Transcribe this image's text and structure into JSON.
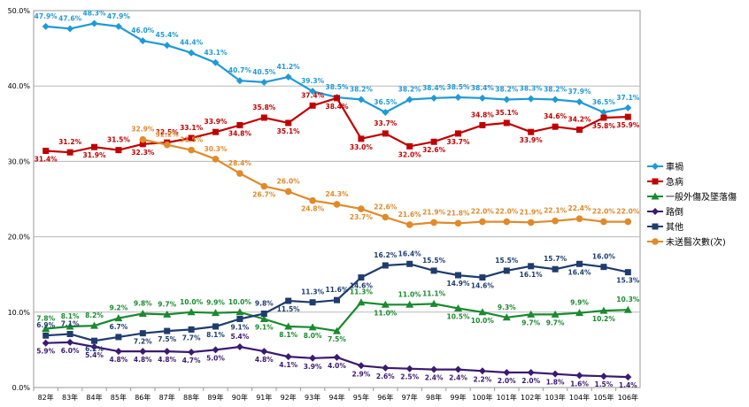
{
  "chart_data": {
    "type": "line",
    "categories": [
      "82年",
      "83年",
      "84年",
      "85年",
      "86年",
      "87年",
      "88年",
      "89年",
      "90年",
      "91年",
      "92年",
      "93年",
      "94年",
      "95年",
      "96年",
      "97年",
      "98年",
      "99年",
      "100年",
      "101年",
      "102年",
      "103年",
      "104年",
      "105年",
      "106年"
    ],
    "ylim": [
      0,
      50
    ],
    "yticks": [
      "0.0%",
      "10.0%",
      "20.0%",
      "30.0%",
      "40.0%",
      "50.0%"
    ],
    "grid": true,
    "legend_position": "right",
    "series": [
      {
        "name": "車禍",
        "color": "#1f9ad6",
        "marker": "diamond",
        "values": [
          47.9,
          47.6,
          48.3,
          47.9,
          46.0,
          45.4,
          44.4,
          43.1,
          40.7,
          40.5,
          41.2,
          39.3,
          38.5,
          38.2,
          36.5,
          38.2,
          38.4,
          38.5,
          38.4,
          38.2,
          38.3,
          38.2,
          37.9,
          36.5,
          37.1
        ],
        "labels": [
          "47.9%",
          "47.6%",
          "48.3%",
          "47.9%",
          "46.0%",
          "45.4%",
          "44.4%",
          "43.1%",
          "40.7%",
          "40.5%",
          "41.2%",
          "39.3%",
          "38.5%",
          "38.2%",
          "36.5%",
          "38.2%",
          "38.4%",
          "38.5%",
          "38.4%",
          "38.2%",
          "38.3%",
          "38.2%",
          "37.9%",
          "36.5%",
          "37.1%"
        ]
      },
      {
        "name": "急病",
        "color": "#c00000",
        "marker": "square",
        "values": [
          31.4,
          31.2,
          31.9,
          31.5,
          32.3,
          32.5,
          33.1,
          33.9,
          34.8,
          35.8,
          35.1,
          37.4,
          38.4,
          33.0,
          33.7,
          32.0,
          32.6,
          33.7,
          34.8,
          35.1,
          33.9,
          34.6,
          34.2,
          35.8,
          35.9
        ],
        "labels": [
          "31.4%",
          "31.2%",
          "31.9%",
          "31.5%",
          "32.3%",
          "32.5%",
          "33.1%",
          "33.9%",
          "34.8%",
          "35.8%",
          "35.1%",
          "37.4%",
          "38.4%",
          "33.0%",
          "33.7%",
          "32.0%",
          "32.6%",
          "33.7%",
          "34.8%",
          "35.1%",
          "33.9%",
          "34.6%",
          "34.2%",
          "35.8%",
          "35.9%"
        ]
      },
      {
        "name": "一般外傷及墜落傷",
        "color": "#1a8a2e",
        "marker": "triangle",
        "values": [
          7.8,
          8.1,
          8.2,
          9.2,
          9.8,
          9.7,
          10.0,
          9.9,
          10.0,
          9.1,
          8.1,
          8.0,
          7.5,
          11.3,
          11.0,
          11.0,
          11.1,
          10.5,
          10.0,
          9.3,
          9.7,
          9.7,
          9.9,
          10.2,
          10.3
        ],
        "labels": [
          "7.8%",
          "8.1%",
          "8.2%",
          "9.2%",
          "9.8%",
          "9.7%",
          "10.0%",
          "9.9%",
          "10.0%",
          "9.1%",
          "8.1%",
          "8.0%",
          "7.5%",
          "11.3%",
          "11.0%",
          "11.0%",
          "11.1%",
          "10.5%",
          "10.0%",
          "9.3%",
          "9.7%",
          "9.7%",
          "9.9%",
          "10.2%",
          "10.3%"
        ]
      },
      {
        "name": "路倒",
        "color": "#3b1a70",
        "marker": "diamond",
        "values": [
          5.9,
          6.0,
          5.4,
          4.8,
          4.8,
          4.8,
          4.7,
          5.0,
          5.4,
          4.8,
          4.1,
          3.9,
          4.0,
          2.9,
          2.6,
          2.5,
          2.4,
          2.4,
          2.2,
          2.0,
          2.0,
          1.8,
          1.6,
          1.5,
          1.4
        ],
        "labels": [
          "5.9%",
          "6.0%",
          "5.4%",
          "4.8%",
          "4.8%",
          "4.8%",
          "4.7%",
          "5.0%",
          "5.4%",
          "4.8%",
          "4.1%",
          "3.9%",
          "4.0%",
          "2.9%",
          "2.6%",
          "2.5%",
          "2.4%",
          "2.4%",
          "2.2%",
          "2.0%",
          "2.0%",
          "1.8%",
          "1.6%",
          "1.5%",
          "1.4%"
        ]
      },
      {
        "name": "其他",
        "color": "#1f3c6e",
        "marker": "square",
        "values": [
          6.9,
          7.1,
          6.2,
          6.7,
          7.2,
          7.5,
          7.7,
          8.1,
          9.1,
          9.8,
          11.5,
          11.3,
          11.6,
          14.6,
          16.2,
          16.4,
          15.5,
          14.9,
          14.6,
          15.5,
          16.1,
          15.7,
          16.4,
          16.0,
          15.3
        ],
        "labels": [
          "6.9%",
          "7.1%",
          "6.2%",
          "6.7%",
          "7.2%",
          "7.5%",
          "7.7%",
          "8.1%",
          "9.1%",
          "9.8%",
          "11.5%",
          "11.3%",
          "11.6%",
          "14.6%",
          "16.2%",
          "16.4%",
          "15.5%",
          "14.9%",
          "14.6%",
          "15.5%",
          "16.1%",
          "15.7%",
          "16.4%",
          "16.0%",
          "15.3%"
        ]
      },
      {
        "name": "未送醫次數(次)",
        "color": "#e08a2a",
        "marker": "circle",
        "start_index": 4,
        "values": [
          null,
          null,
          null,
          null,
          32.9,
          32.2,
          31.5,
          30.3,
          28.4,
          26.7,
          26.0,
          24.8,
          24.3,
          23.7,
          22.6,
          21.6,
          21.9,
          21.8,
          22.0,
          22.0,
          21.9,
          22.1,
          22.4,
          22.0,
          22.0
        ],
        "labels": [
          null,
          null,
          null,
          null,
          "32.9%",
          "32.2%",
          "31.5%",
          "30.3%",
          "28.4%",
          "26.7%",
          "26.0%",
          "24.8%",
          "24.3%",
          "23.7%",
          "22.6%",
          "21.6%",
          "21.9%",
          "21.8%",
          "22.0%",
          "22.0%",
          "21.9%",
          "22.1%",
          "22.4%",
          "22.0%",
          "22.0%"
        ]
      }
    ]
  }
}
